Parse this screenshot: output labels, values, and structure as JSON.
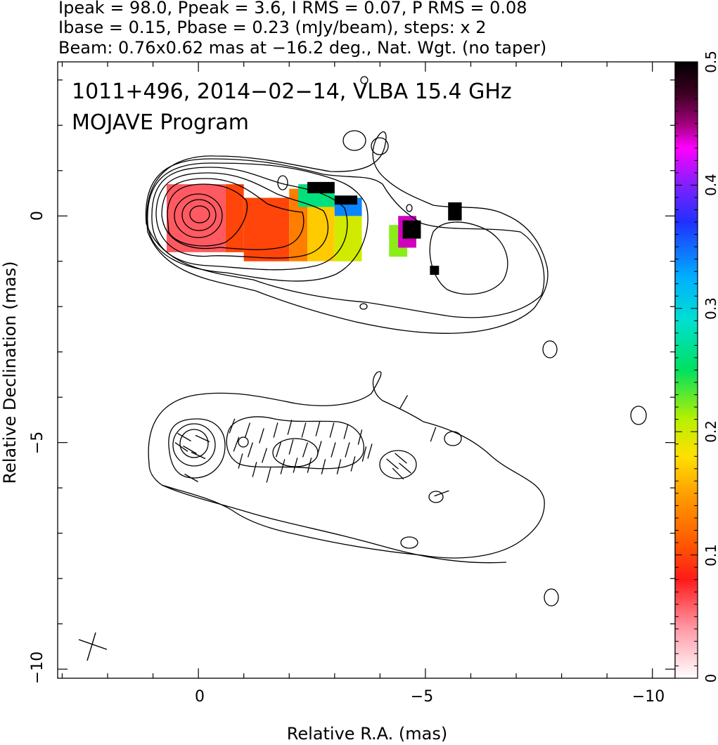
{
  "header": {
    "line1": "Ipeak = 98.0, Ppeak = 3.6, I RMS = 0.07, P RMS = 0.08",
    "line2": "Ibase = 0.15, Pbase = 0.23 (mJy/beam), steps: x 2",
    "line3": "Beam: 0.76x0.62 mas at −16.2 deg., Nat. Wgt. (no taper)"
  },
  "plot_labels": {
    "source": "1011+496, 2014−02−14, VLBA 15.4 GHz",
    "program": "MOJAVE Program"
  },
  "chart_data": {
    "type": "heatmap",
    "xlabel": "Relative R.A. (mas)",
    "ylabel": "Relative Declination (mas)",
    "xlim": [
      3.1,
      -10.5
    ],
    "ylim": [
      -10.2,
      3.4
    ],
    "x_ticks": [
      0,
      -5,
      -10
    ],
    "x_tick_labels": [
      "0",
      "−5",
      "−10"
    ],
    "y_ticks": [
      0,
      -5,
      -10
    ],
    "y_tick_labels": [
      "0",
      "−5",
      "−10"
    ],
    "colorbar": {
      "range": [
        0,
        0.5
      ],
      "ticks": [
        0,
        0.1,
        0.2,
        0.3,
        0.4,
        0.5
      ],
      "tick_labels": [
        "0",
        "0.1",
        "0.2",
        "0.3",
        "0.4",
        "0.5"
      ]
    },
    "core": [
      0,
      0
    ],
    "fractional_polarization_regions": [
      {
        "x": [
          0.7,
          -0.6
        ],
        "y": [
          0.7,
          -0.8
        ],
        "value": 0.06
      },
      {
        "x": [
          -0.6,
          -1.0
        ],
        "y": [
          0.7,
          -0.8
        ],
        "value": 0.1
      },
      {
        "x": [
          -1.0,
          -2.0
        ],
        "y": [
          0.4,
          -1.0
        ],
        "value": 0.1
      },
      {
        "x": [
          -2.0,
          -2.4
        ],
        "y": [
          0.6,
          -1.0
        ],
        "value": 0.13
      },
      {
        "x": [
          -2.4,
          -3.0
        ],
        "y": [
          0.4,
          -1.0
        ],
        "value": 0.17
      },
      {
        "x": [
          -3.0,
          -3.6
        ],
        "y": [
          0.3,
          -1.0
        ],
        "value": 0.2
      },
      {
        "x": [
          -2.2,
          -3.0
        ],
        "y": [
          0.7,
          0.2
        ],
        "value": 0.26
      },
      {
        "x": [
          -3.0,
          -3.6
        ],
        "y": [
          0.4,
          0.0
        ],
        "value": 0.34
      },
      {
        "x": [
          -4.2,
          -4.6
        ],
        "y": [
          -0.2,
          -0.9
        ],
        "value": 0.22
      },
      {
        "x": [
          -4.4,
          -4.8
        ],
        "y": [
          0.0,
          -0.7
        ],
        "value": 0.44
      },
      {
        "x": [
          -2.4,
          -3.0
        ],
        "y": [
          0.75,
          0.5
        ],
        "value": 0.5
      },
      {
        "x": [
          -3.0,
          -3.5
        ],
        "y": [
          0.45,
          0.25
        ],
        "value": 0.5
      },
      {
        "x": [
          -4.5,
          -4.9
        ],
        "y": [
          -0.1,
          -0.5
        ],
        "value": 0.5
      },
      {
        "x": [
          -5.5,
          -5.8
        ],
        "y": [
          0.3,
          -0.1
        ],
        "value": 0.5
      },
      {
        "x": [
          -5.1,
          -5.3
        ],
        "y": [
          -1.1,
          -1.3
        ],
        "value": 0.5
      }
    ],
    "inset_offset_dec": -5
  }
}
